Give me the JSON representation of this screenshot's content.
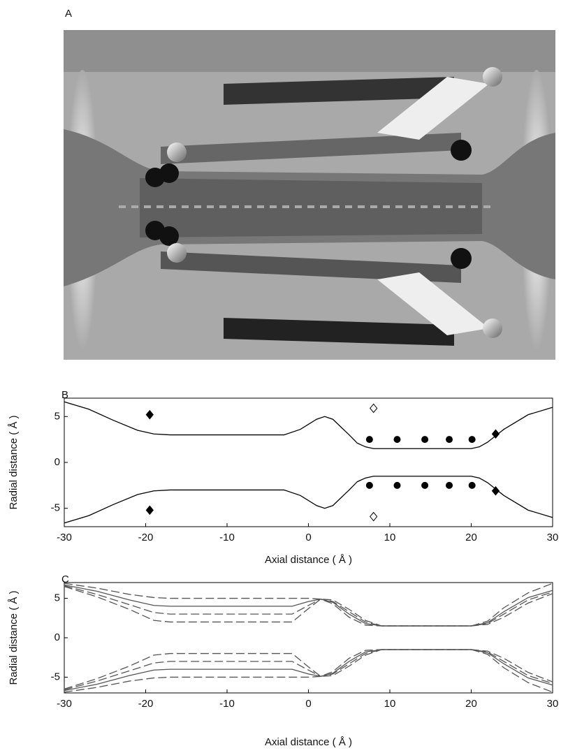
{
  "panel_a": {
    "label": "A"
  },
  "chart_data": [
    {
      "type": "line",
      "label": "B",
      "xlabel": "Axial distance ( Å )",
      "ylabel": "Radial distance ( Å )",
      "xlim": [
        -30,
        30
      ],
      "ylim": [
        -7,
        7
      ],
      "xticks": [
        -30,
        -20,
        -10,
        0,
        10,
        20,
        30
      ],
      "yticks": [
        -5,
        0,
        5
      ],
      "series": [
        {
          "style": "solid",
          "color": "#000000",
          "x": [
            -30,
            -27,
            -24,
            -21,
            -19,
            -17,
            -3,
            -1,
            1,
            2,
            3,
            5,
            6,
            7,
            8,
            20,
            21,
            22,
            24,
            27,
            30
          ],
          "values": [
            6.6,
            5.8,
            4.6,
            3.5,
            3.1,
            3.0,
            3.0,
            3.6,
            4.7,
            5.0,
            4.7,
            3.0,
            2.1,
            1.7,
            1.5,
            1.5,
            1.7,
            2.2,
            3.6,
            5.2,
            6.0
          ]
        },
        {
          "style": "solid",
          "color": "#000000",
          "x": [
            -30,
            -27,
            -24,
            -21,
            -19,
            -17,
            -3,
            -1,
            1,
            2,
            3,
            5,
            6,
            7,
            8,
            20,
            21,
            22,
            24,
            27,
            30
          ],
          "values": [
            -6.6,
            -5.8,
            -4.6,
            -3.5,
            -3.1,
            -3.0,
            -3.0,
            -3.6,
            -4.7,
            -5.0,
            -4.7,
            -3.0,
            -2.1,
            -1.7,
            -1.5,
            -1.5,
            -1.7,
            -2.2,
            -3.6,
            -5.2,
            -6.0
          ]
        },
        {
          "marker": "diamond",
          "color": "#000000",
          "x": [
            -19.5,
            -19.5,
            23,
            23
          ],
          "values": [
            5.2,
            -5.2,
            3.1,
            -3.1
          ]
        },
        {
          "marker": "open-diamond",
          "color": "#000000",
          "x": [
            8,
            8
          ],
          "values": [
            5.9,
            -5.9
          ]
        },
        {
          "marker": "circle",
          "color": "#000000",
          "x": [
            7.5,
            10.9,
            14.3,
            17.3,
            20.1,
            7.5,
            10.9,
            14.3,
            17.3,
            20.1
          ],
          "values": [
            2.5,
            2.5,
            2.5,
            2.5,
            2.5,
            -2.5,
            -2.5,
            -2.5,
            -2.5,
            -2.5
          ]
        }
      ]
    },
    {
      "type": "line",
      "label": "C",
      "xlabel": "Axial distance ( Å )",
      "ylabel": "Radial distance ( Å )",
      "xlim": [
        -30,
        30
      ],
      "ylim": [
        -7,
        7
      ],
      "xticks": [
        -30,
        -20,
        -10,
        0,
        10,
        20,
        30
      ],
      "yticks": [
        -5,
        0,
        5
      ],
      "series": [
        {
          "style": "solid",
          "color": "#555555",
          "x": [
            -30,
            -26,
            -22,
            -19,
            -17,
            -2,
            0,
            1.5,
            3,
            5,
            7,
            9,
            20,
            22,
            24,
            27,
            30
          ],
          "values": [
            6.7,
            5.9,
            4.8,
            4.1,
            4.0,
            4.0,
            4.6,
            4.9,
            4.5,
            3.0,
            1.8,
            1.5,
            1.5,
            1.9,
            3.3,
            5.1,
            6.0
          ]
        },
        {
          "style": "dashed",
          "color": "#555555",
          "x": [
            -30,
            -26,
            -22,
            -19,
            -17,
            -2,
            0,
            1.5,
            3,
            5,
            7,
            9,
            20,
            22,
            24,
            27,
            30
          ],
          "values": [
            6.9,
            6.3,
            5.5,
            5.1,
            5.0,
            5.0,
            5.0,
            4.9,
            4.3,
            2.6,
            1.6,
            1.5,
            1.5,
            2.1,
            3.8,
            5.7,
            6.9
          ]
        },
        {
          "style": "dashed",
          "color": "#555555",
          "x": [
            -30,
            -26,
            -22,
            -19,
            -17,
            -2,
            0,
            1.5,
            3,
            5,
            7,
            9,
            20,
            22,
            24,
            27,
            30
          ],
          "values": [
            6.6,
            5.5,
            4.2,
            3.2,
            3.0,
            3.0,
            4.1,
            4.9,
            4.6,
            3.3,
            2.0,
            1.5,
            1.5,
            1.8,
            3.0,
            4.8,
            5.8
          ]
        },
        {
          "style": "dashed",
          "color": "#555555",
          "x": [
            -30,
            -26,
            -22,
            -19,
            -17,
            -2,
            0,
            1.5,
            3,
            5,
            7,
            9,
            20,
            22,
            24,
            27,
            30
          ],
          "values": [
            6.5,
            5.2,
            3.6,
            2.2,
            2.0,
            2.0,
            3.7,
            4.9,
            4.8,
            3.6,
            2.2,
            1.5,
            1.5,
            1.7,
            2.6,
            4.4,
            5.6
          ]
        },
        {
          "style": "solid",
          "color": "#555555",
          "x": [
            -30,
            -26,
            -22,
            -19,
            -17,
            -2,
            0,
            1.5,
            3,
            5,
            7,
            9,
            20,
            22,
            24,
            27,
            30
          ],
          "values": [
            -6.7,
            -5.9,
            -4.8,
            -4.1,
            -4.0,
            -4.0,
            -4.6,
            -4.9,
            -4.5,
            -3.0,
            -1.8,
            -1.5,
            -1.5,
            -1.9,
            -3.3,
            -5.1,
            -6.0
          ]
        },
        {
          "style": "dashed",
          "color": "#555555",
          "x": [
            -30,
            -26,
            -22,
            -19,
            -17,
            -2,
            0,
            1.5,
            3,
            5,
            7,
            9,
            20,
            22,
            24,
            27,
            30
          ],
          "values": [
            -6.9,
            -6.3,
            -5.5,
            -5.1,
            -5.0,
            -5.0,
            -5.0,
            -4.9,
            -4.3,
            -2.6,
            -1.6,
            -1.5,
            -1.5,
            -2.1,
            -3.8,
            -5.7,
            -6.9
          ]
        },
        {
          "style": "dashed",
          "color": "#555555",
          "x": [
            -30,
            -26,
            -22,
            -19,
            -17,
            -2,
            0,
            1.5,
            3,
            5,
            7,
            9,
            20,
            22,
            24,
            27,
            30
          ],
          "values": [
            -6.6,
            -5.5,
            -4.2,
            -3.2,
            -3.0,
            -3.0,
            -4.1,
            -4.9,
            -4.6,
            -3.3,
            -2.0,
            -1.5,
            -1.5,
            -1.8,
            -3.0,
            -4.8,
            -5.8
          ]
        },
        {
          "style": "dashed",
          "color": "#555555",
          "x": [
            -30,
            -26,
            -22,
            -19,
            -17,
            -2,
            0,
            1.5,
            3,
            5,
            7,
            9,
            20,
            22,
            24,
            27,
            30
          ],
          "values": [
            -6.5,
            -5.2,
            -3.6,
            -2.2,
            -2.0,
            -2.0,
            -3.7,
            -4.9,
            -4.8,
            -3.6,
            -2.2,
            -1.5,
            -1.5,
            -1.7,
            -2.6,
            -4.4,
            -5.6
          ]
        }
      ]
    }
  ]
}
